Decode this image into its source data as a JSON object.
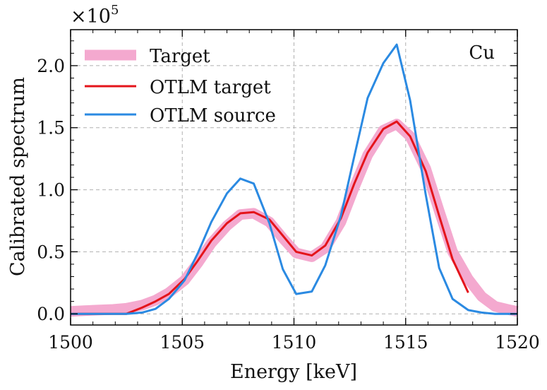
{
  "chart_data": {
    "type": "line",
    "title": "",
    "xlabel": "Energy [keV]",
    "ylabel": "Calibrated spectrum",
    "y_scale_label": "×10",
    "y_scale_exponent": "5",
    "annotation": "Cu",
    "xlim": [
      1500,
      1520
    ],
    "ylim": [
      -0.09,
      2.29
    ],
    "x_ticks": [
      1500,
      1505,
      1510,
      1515,
      1520
    ],
    "x_tick_labels": [
      "1500",
      "1505",
      "1510",
      "1515",
      "1520"
    ],
    "y_ticks": [
      0.0,
      0.5,
      1.0,
      1.5,
      2.0
    ],
    "y_tick_labels": [
      "0.0",
      "0.5",
      "1.0",
      "1.5",
      "2.0"
    ],
    "grid": true,
    "legend_position": "top-left",
    "series": [
      {
        "name": "Target",
        "color": "#f4a9cf",
        "style": "thick",
        "x": [
          1500,
          1500.6,
          1501.2,
          1501.9,
          1502.5,
          1503.2,
          1503.8,
          1504.4,
          1505.1,
          1505.7,
          1506.3,
          1507.0,
          1507.6,
          1508.2,
          1508.9,
          1509.5,
          1510.1,
          1510.8,
          1511.4,
          1512.1,
          1512.7,
          1513.3,
          1514.0,
          1514.6,
          1515.2,
          1515.9,
          1516.5,
          1517.1,
          1517.8,
          1518.4,
          1519.0,
          1519.7,
          1520
        ],
        "y": [
          0.02,
          0.025,
          0.03,
          0.035,
          0.045,
          0.07,
          0.11,
          0.17,
          0.27,
          0.41,
          0.57,
          0.71,
          0.8,
          0.81,
          0.74,
          0.61,
          0.49,
          0.46,
          0.53,
          0.74,
          1.02,
          1.28,
          1.48,
          1.53,
          1.43,
          1.17,
          0.83,
          0.5,
          0.28,
          0.14,
          0.06,
          0.03,
          0.02
        ]
      },
      {
        "name": "OTLM target",
        "color": "#e4141b",
        "style": "line",
        "x": [
          1500,
          1500.6,
          1501.2,
          1501.9,
          1502.5,
          1503.2,
          1503.8,
          1504.4,
          1505.1,
          1505.7,
          1506.3,
          1507.0,
          1507.6,
          1508.2,
          1508.9,
          1509.5,
          1510.1,
          1510.8,
          1511.4,
          1512.1,
          1512.7,
          1513.3,
          1514.0,
          1514.6,
          1515.2,
          1515.9,
          1516.5,
          1517.1,
          1517.8
        ],
        "y": [
          0.0,
          0.0,
          0.0,
          0.0,
          0.0,
          0.05,
          0.1,
          0.16,
          0.28,
          0.43,
          0.59,
          0.73,
          0.81,
          0.82,
          0.76,
          0.63,
          0.5,
          0.47,
          0.55,
          0.77,
          1.05,
          1.3,
          1.49,
          1.55,
          1.43,
          1.15,
          0.79,
          0.44,
          0.17
        ]
      },
      {
        "name": "OTLM source",
        "color": "#2b8ae2",
        "style": "line",
        "x": [
          1500,
          1500.6,
          1501.2,
          1501.9,
          1502.5,
          1503.2,
          1503.8,
          1504.4,
          1505.1,
          1505.7,
          1506.3,
          1507.0,
          1507.6,
          1508.2,
          1508.9,
          1509.5,
          1510.1,
          1510.8,
          1511.4,
          1512.1,
          1512.7,
          1513.3,
          1514.0,
          1514.6,
          1515.2,
          1515.9,
          1516.5,
          1517.1,
          1517.8,
          1518.4,
          1519.0,
          1519.7,
          1520
        ],
        "y": [
          0.0,
          0.0,
          0.0,
          0.0,
          0.0,
          0.01,
          0.04,
          0.12,
          0.27,
          0.49,
          0.74,
          0.97,
          1.09,
          1.05,
          0.73,
          0.36,
          0.16,
          0.18,
          0.39,
          0.79,
          1.27,
          1.74,
          2.02,
          2.17,
          1.72,
          0.96,
          0.37,
          0.12,
          0.03,
          0.01,
          0.0,
          0.0,
          0.0
        ]
      }
    ]
  }
}
